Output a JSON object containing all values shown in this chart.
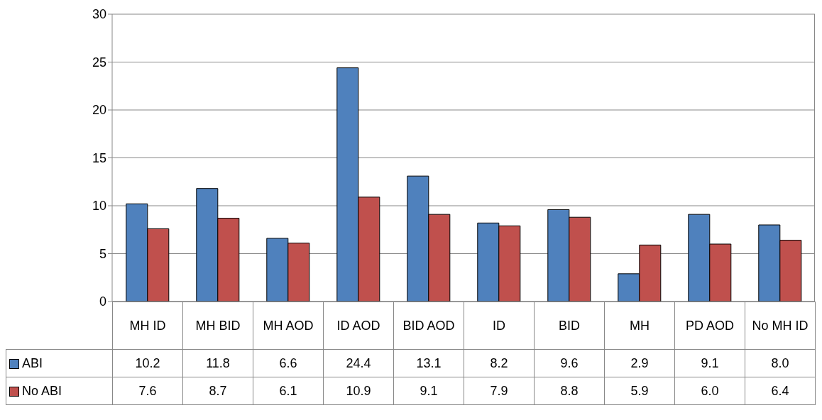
{
  "chart_data": {
    "type": "bar",
    "categories": [
      "MH ID",
      "MH BID",
      "MH AOD",
      "ID AOD",
      "BID AOD",
      "ID",
      "BID",
      "MH",
      "PD AOD",
      "No MH ID"
    ],
    "series": [
      {
        "name": "ABI",
        "color": "#4f81bd",
        "values": [
          10.2,
          11.8,
          6.6,
          24.4,
          13.1,
          8.2,
          9.6,
          2.9,
          9.1,
          8.0
        ],
        "value_labels": [
          "10.2",
          "11.8",
          "6.6",
          "24.4",
          "13.1",
          "8.2",
          "9.6",
          "2.9",
          "9.1",
          "8.0"
        ]
      },
      {
        "name": "No ABI",
        "color": "#c0504d",
        "values": [
          7.6,
          8.7,
          6.1,
          10.9,
          9.1,
          7.9,
          8.8,
          5.9,
          6.0,
          6.4
        ],
        "value_labels": [
          "7.6",
          "8.7",
          "6.1",
          "10.9",
          "9.1",
          "7.9",
          "8.8",
          "5.9",
          "6.0",
          "6.4"
        ]
      }
    ],
    "legend": "bottom left",
    "ylim": [
      0,
      30
    ],
    "yticks": [
      0,
      5,
      10,
      15,
      20,
      25,
      30
    ],
    "grid": "y"
  }
}
